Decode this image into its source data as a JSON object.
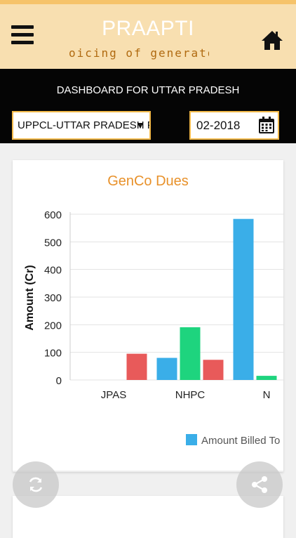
{
  "header": {
    "title": "PRAAPTI",
    "marquee": "oicing of generators",
    "menu_icon": "hamburger-menu-icon",
    "home_icon": "home-icon",
    "colors": {
      "strip": "#f6c36a",
      "bg": "#f8dfb0",
      "marquee": "#b06a10"
    }
  },
  "dashboard": {
    "title": "DASHBOARD FOR UTTAR PRADESH",
    "select_value": "UPPCL-UTTAR PRADESH PO",
    "date_value": "02-2018"
  },
  "chart_data": {
    "type": "bar",
    "title": "GenCo Dues",
    "ylabel": "Amount (Cr)",
    "ylim": [
      0,
      600
    ],
    "yticks": [
      0,
      100,
      200,
      300,
      400,
      500,
      600
    ],
    "categories": [
      "JPAS",
      "NHPC",
      "N"
    ],
    "series": [
      {
        "name": "Amount Billed To",
        "color": "#3aaee8",
        "values": [
          0,
          80,
          583
        ]
      },
      {
        "color": "#1ed47e",
        "values": [
          0,
          191,
          15
        ]
      },
      {
        "color": "#e85a5a",
        "values": [
          95,
          73,
          null
        ]
      }
    ],
    "legend": "bottom-right"
  },
  "actions": {
    "refresh_icon": "refresh-icon",
    "share_icon": "share-icon"
  }
}
